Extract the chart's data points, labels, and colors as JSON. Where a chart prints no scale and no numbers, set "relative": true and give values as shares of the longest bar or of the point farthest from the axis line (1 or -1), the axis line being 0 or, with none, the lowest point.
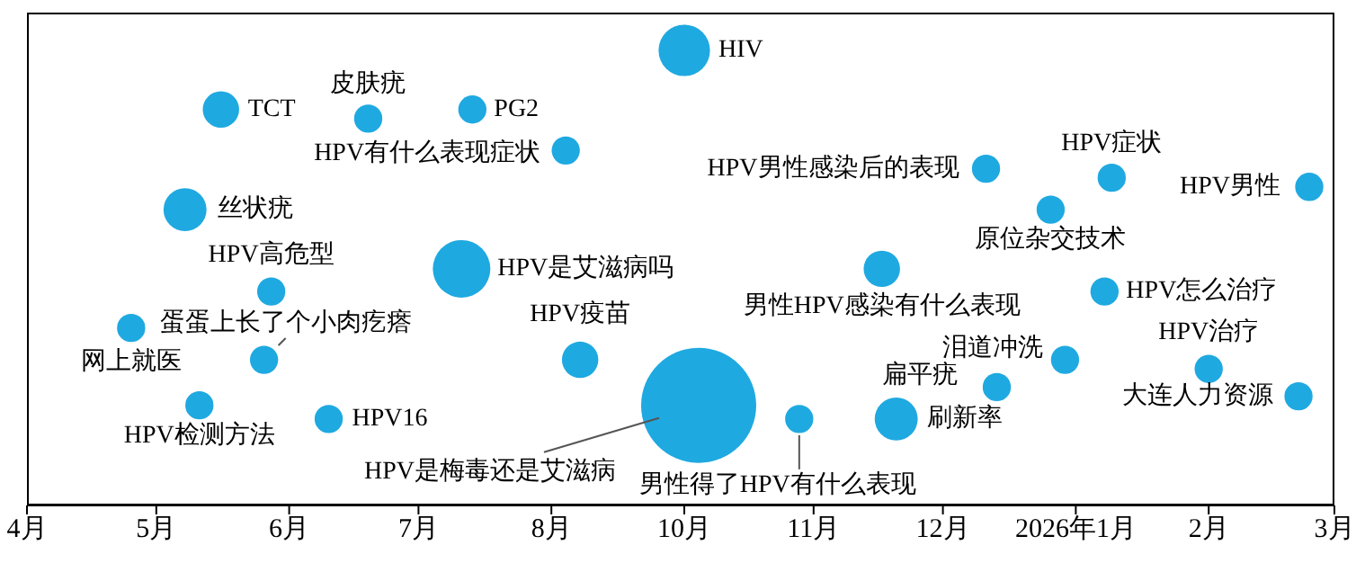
{
  "chart_data": {
    "type": "bubble",
    "relative": true,
    "xlim": [
      "2025-04-01",
      "2026-03-31"
    ],
    "xticks": [
      {
        "value": "2025-04-01",
        "label": "4月"
      },
      {
        "value": "2025-05-07",
        "label": "5月"
      },
      {
        "value": "2025-06-13",
        "label": "6月"
      },
      {
        "value": "2025-07-19",
        "label": "7月"
      },
      {
        "value": "2025-08-25",
        "label": "8月"
      },
      {
        "value": "2025-10-01",
        "label": "10月"
      },
      {
        "value": "2025-11-06",
        "label": "11月"
      },
      {
        "value": "2025-12-12",
        "label": "12月"
      },
      {
        "value": "2026-01-18",
        "label": "2026年1月"
      },
      {
        "value": "2026-02-24",
        "label": "2月"
      },
      {
        "value": "2026-03-31",
        "label": "3月"
      }
    ],
    "series": [
      {
        "color": "#1fa9e1",
        "x": [
          "2025-05-25",
          "2025-07-05",
          "2025-08-03",
          "2025-08-29",
          "2025-05-15",
          "2025-06-08",
          "2025-07-31",
          "2025-10-01",
          "2025-04-30",
          "2025-06-06",
          "2025-09-02",
          "2025-05-19",
          "2025-06-24",
          "2025-10-05",
          "2025-12-24",
          "2026-01-28",
          "2026-03-24",
          "2026-01-11",
          "2025-11-25",
          "2026-01-26",
          "2026-01-15",
          "2026-02-24",
          "2025-12-27",
          "2025-11-02",
          "2025-11-29",
          "2026-03-21"
        ],
        "values": [
          0.87,
          0.85,
          0.87,
          0.78,
          0.65,
          0.47,
          0.52,
          1,
          0.39,
          0.32,
          0.32,
          0.22,
          0.19,
          0.22,
          0.74,
          0.72,
          0.7,
          0.65,
          0.52,
          0.47,
          0.32,
          0.3,
          0.26,
          0.19,
          0.19,
          0.24
        ],
        "sizes": [
          0.1,
          0.06,
          0.06,
          0.06,
          0.14,
          0.06,
          0.25,
          0.2,
          0.06,
          0.06,
          0.1,
          0.06,
          0.06,
          1,
          0.06,
          0.06,
          0.06,
          0.06,
          0.1,
          0.06,
          0.06,
          0.06,
          0.06,
          0.06,
          0.14,
          0.06
        ]
      }
    ],
    "annotations": [
      {
        "text": "TCT",
        "x": "2025-05-25",
        "y": 0.87
      },
      {
        "text": "皮肤疣",
        "x": "2025-07-05",
        "y": 0.85
      },
      {
        "text": "PG2",
        "x": "2025-08-03",
        "y": 0.87
      },
      {
        "text": "HPV有什么表现症状",
        "x": "2025-08-29",
        "y": 0.78
      },
      {
        "text": "丝状疣",
        "x": "2025-05-15",
        "y": 0.65
      },
      {
        "text": "HPV高危型",
        "x": "2025-06-08",
        "y": 0.47
      },
      {
        "text": "HPV是艾滋病吗",
        "x": "2025-07-31",
        "y": 0.52
      },
      {
        "text": "HIV",
        "x": "2025-10-01",
        "y": 1
      },
      {
        "text": "网上就医",
        "x": "2025-04-30",
        "y": 0.39
      },
      {
        "text": "蛋蛋上长了个小肉疙瘩",
        "x": "2025-06-06",
        "y": 0.32
      },
      {
        "text": "HPV疫苗",
        "x": "2025-09-02",
        "y": 0.32
      },
      {
        "text": "HPV检测方法",
        "x": "2025-05-19",
        "y": 0.22
      },
      {
        "text": "HPV16",
        "x": "2025-06-24",
        "y": 0.19
      },
      "HPV是梅毒还是艾滋病",
      {
        "text": "HPV男性感染后的表现",
        "x": "2025-12-24",
        "y": 0.74
      },
      {
        "text": "HPV症状",
        "x": "2026-01-28",
        "y": 0.72
      },
      {
        "text": "HPV男性",
        "x": "2026-03-24",
        "y": 0.7
      },
      {
        "text": "原位杂交技术",
        "x": "2026-01-11",
        "y": 0.65
      },
      {
        "text": "男性HPV感染有什么表现",
        "x": "2025-11-25",
        "y": 0.52
      },
      {
        "text": "HPV怎么治疗",
        "x": "2026-01-26",
        "y": 0.47
      },
      {
        "text": "泪道冲洗",
        "x": "2026-01-15",
        "y": 0.32
      },
      {
        "text": "HPV治疗",
        "x": "2026-02-24",
        "y": 0.3
      },
      {
        "text": "扁平疣",
        "x": "2025-12-27",
        "y": 0.26
      },
      {
        "text": "男性得了HPV有什么表现",
        "x": "2025-11-02",
        "y": 0.19
      },
      {
        "text": "刷新率",
        "x": "2025-11-29",
        "y": 0.19
      },
      {
        "text": "大连人力资源",
        "x": "2026-03-21",
        "y": 0.24
      }
    ]
  }
}
